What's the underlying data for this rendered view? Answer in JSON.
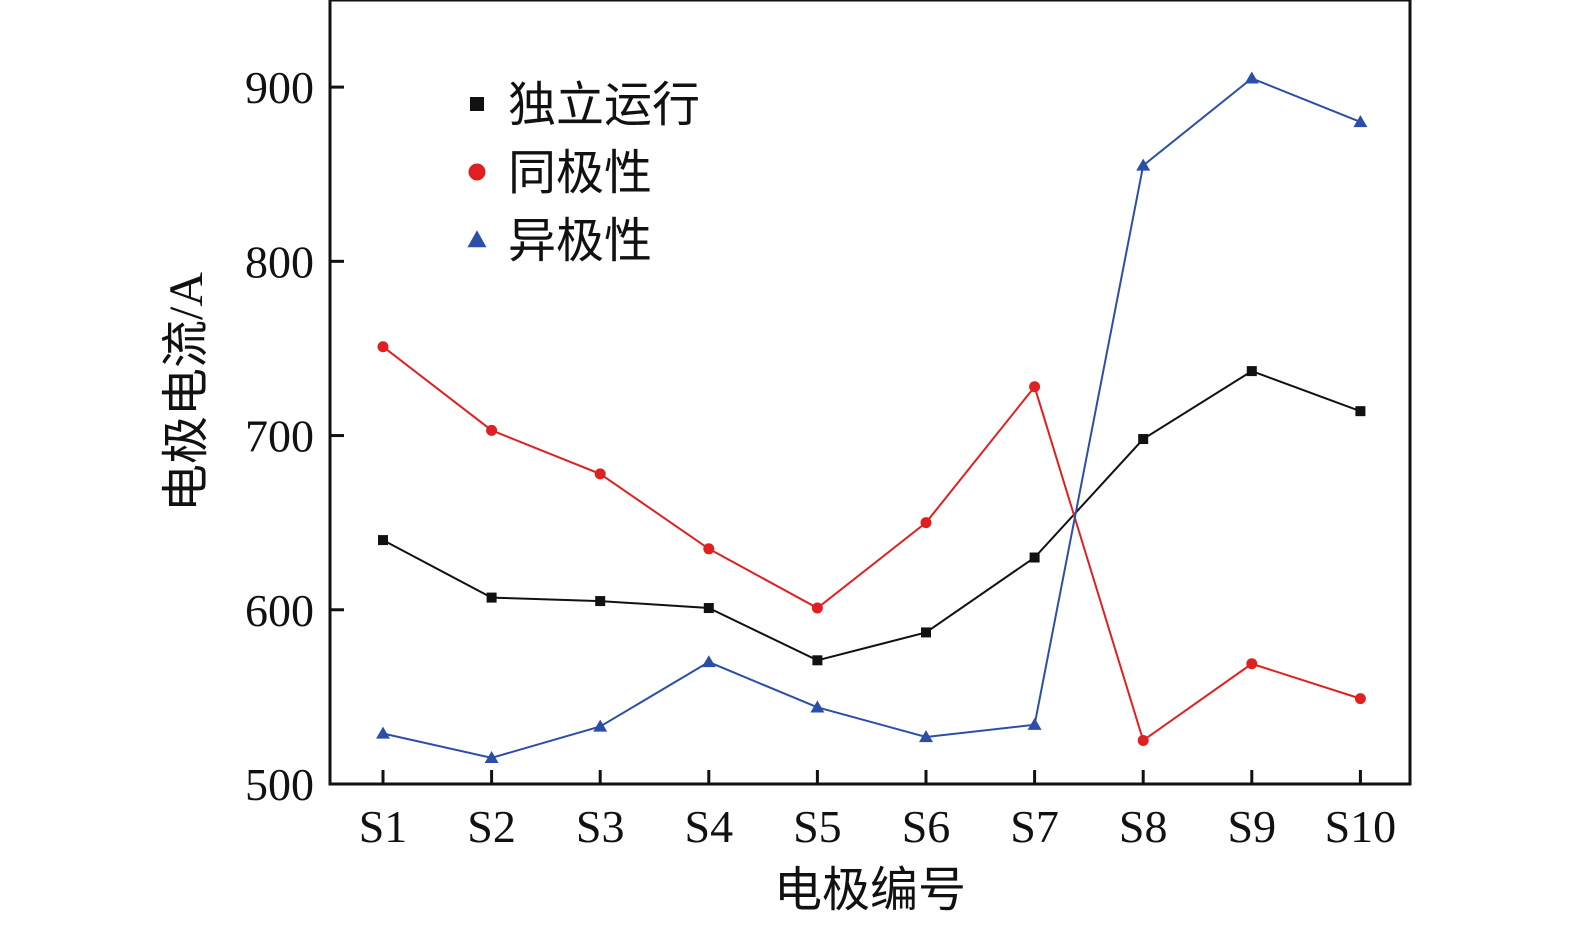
{
  "chart_data": {
    "type": "line",
    "title": "",
    "xlabel": "电极编号",
    "ylabel": "电极电流/A",
    "categories": [
      "S1",
      "S2",
      "S3",
      "S4",
      "S5",
      "S6",
      "S7",
      "S8",
      "S9",
      "S10"
    ],
    "ylim": [
      500,
      950
    ],
    "yticks": [
      500,
      600,
      700,
      800,
      900
    ],
    "grid": false,
    "legend_position": "top-left",
    "series": [
      {
        "name": "独立运行",
        "color": "#111111",
        "marker": "square",
        "values": [
          640,
          607,
          605,
          601,
          571,
          587,
          630,
          698,
          737,
          714
        ]
      },
      {
        "name": "同极性",
        "color": "#e02020",
        "marker": "circle",
        "values": [
          751,
          703,
          678,
          635,
          601,
          650,
          728,
          525,
          569,
          549
        ]
      },
      {
        "name": "异极性",
        "color": "#2b4fa8",
        "marker": "triangle",
        "values": [
          529,
          515,
          533,
          570,
          544,
          527,
          534,
          855,
          905,
          880
        ]
      }
    ]
  }
}
